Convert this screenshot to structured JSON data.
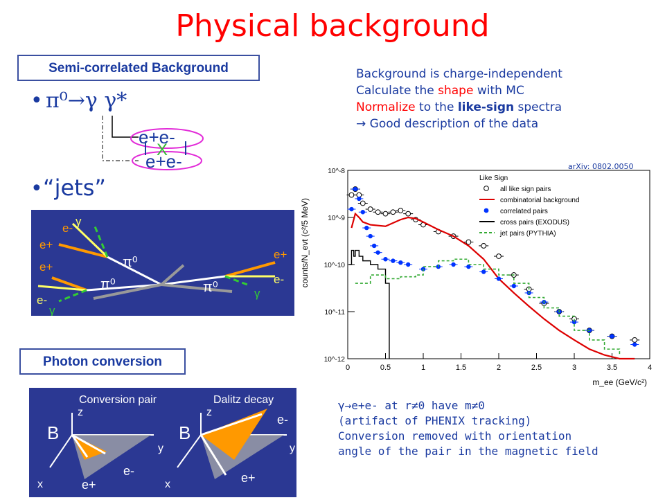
{
  "slide": {
    "title": "Physical background",
    "semi_box_label": "Semi-correlated Background",
    "photon_box_label": "Photon conversion",
    "bullet_glyph": "•",
    "pi_reaction": "π⁰→γ γ*",
    "ee_top": "e+e-",
    "ee_bottom": "e+e-",
    "cross_mark": "X",
    "jets_label": "“jets”",
    "description": [
      {
        "parts": [
          {
            "t": "Background is charge-independent",
            "c": ""
          }
        ]
      },
      {
        "parts": [
          {
            "t": "Calculate the ",
            "c": ""
          },
          {
            "t": "shape",
            "c": "red"
          },
          {
            "t": " with MC",
            "c": ""
          }
        ]
      },
      {
        "parts": [
          {
            "t": "Normalize",
            "c": "red"
          },
          {
            "t": " to the ",
            "c": ""
          },
          {
            "t": "like-sign",
            "c": "bold"
          },
          {
            "t": " spectra",
            "c": ""
          }
        ]
      },
      {
        "parts": [
          {
            "t": "→ Good description of the data",
            "c": ""
          }
        ]
      }
    ],
    "arxiv": "arXiv: 0802.0050",
    "conv_notes": [
      "γ→e+e- at r≠0 have m≠0",
      "(artifact of PHENIX tracking)",
      "Conversion removed with  orientation",
      "angle of the pair in the magnetic field"
    ]
  },
  "jets_diagram": {
    "labels": {
      "e_minus_top": "e-",
      "gamma_top": "γ",
      "e_plus_1": "e+",
      "e_plus_2": "e+",
      "pi0_a": "π⁰",
      "pi0_b": "π⁰",
      "pi0_c": "π⁰",
      "e_minus_left": "e-",
      "gamma_left": "γ",
      "e_plus_right": "e+",
      "e_minus_right": "e-",
      "gamma_right": "γ"
    }
  },
  "conversion_diagram": {
    "left_title": "Conversion pair",
    "right_title": "Dalitz decay",
    "B": "B",
    "z": "z",
    "y": "y",
    "x": "x",
    "e_minus": "e-",
    "e_plus": "e+"
  },
  "colors": {
    "title": "#ff0000",
    "text_blue": "#1a3aa0",
    "panel_bg": "#2b3893",
    "orange": "#ff9900",
    "yellow": "#ffff66",
    "green_dash": "#33cc33",
    "combinatorial": "#dd0000",
    "correlated": "#0033ff",
    "cross_pairs": "#000000",
    "jet_pairs": "#33aa33"
  },
  "chart_data": {
    "type": "line",
    "xlabel": "m_ee (GeV/c²)",
    "ylabel": "counts/N_evt (c²/5 MeV)",
    "xlim": [
      0,
      4
    ],
    "ylim": [
      1e-12,
      1e-08
    ],
    "log_y": true,
    "x_ticks": [
      "0",
      "0.5",
      "1",
      "1.5",
      "2",
      "2.5",
      "3",
      "3.5",
      "4"
    ],
    "y_ticks": [
      "10^-8",
      "10^-9",
      "10^-10",
      "10^-11",
      "10^-12"
    ],
    "legend_title": "Like Sign",
    "legend_position": "top-right",
    "series": [
      {
        "name": "all like sign pairs",
        "style": "open-circle",
        "x": [
          0.05,
          0.1,
          0.15,
          0.2,
          0.3,
          0.4,
          0.5,
          0.6,
          0.7,
          0.8,
          0.9,
          1.0,
          1.2,
          1.4,
          1.6,
          1.8,
          2.0,
          2.2,
          2.4,
          2.6,
          2.8,
          3.0,
          3.2,
          3.5,
          3.8
        ],
        "y": [
          3e-09,
          4e-09,
          3e-09,
          2e-09,
          1.5e-09,
          1.3e-09,
          1.2e-09,
          1.3e-09,
          1.4e-09,
          1.2e-09,
          9e-10,
          7e-10,
          5e-10,
          4e-10,
          3e-10,
          2.5e-10,
          1.5e-10,
          6e-11,
          3e-11,
          1.5e-11,
          1e-11,
          7e-12,
          4e-12,
          3e-12,
          2.5e-12
        ]
      },
      {
        "name": "combinatorial background",
        "style": "red-line",
        "x": [
          0.05,
          0.1,
          0.15,
          0.2,
          0.3,
          0.5,
          0.7,
          0.8,
          0.9,
          1.0,
          1.2,
          1.4,
          1.6,
          1.8,
          2.0,
          2.2,
          2.4,
          2.6,
          2.8,
          3.0,
          3.2,
          3.4,
          3.6,
          3.8
        ],
        "y": [
          6e-10,
          1.2e-09,
          1e-09,
          8e-10,
          7e-10,
          6.5e-10,
          9e-10,
          1e-09,
          9.5e-10,
          8e-10,
          5.5e-10,
          4e-10,
          2.5e-10,
          1.3e-10,
          5e-11,
          2.5e-11,
          1.3e-11,
          7e-12,
          4e-12,
          2.5e-12,
          1.6e-12,
          1.2e-12,
          1e-12,
          9e-13
        ]
      },
      {
        "name": "correlated pairs",
        "style": "blue-dot",
        "x": [
          0.05,
          0.1,
          0.15,
          0.2,
          0.25,
          0.3,
          0.35,
          0.4,
          0.5,
          0.6,
          0.7,
          0.8,
          1.0,
          1.2,
          1.4,
          1.6,
          1.8,
          2.0,
          2.2,
          2.4,
          2.6,
          2.8,
          3.0,
          3.2,
          3.5,
          3.8
        ],
        "y": [
          1.5e-09,
          4e-09,
          2.5e-09,
          1.3e-09,
          6e-10,
          4e-10,
          2.5e-10,
          1.8e-10,
          1.3e-10,
          1.2e-10,
          1.1e-10,
          1e-10,
          8e-11,
          9e-11,
          1e-10,
          9e-11,
          7e-11,
          5e-11,
          3.5e-11,
          2.5e-11,
          1.6e-11,
          1e-11,
          6e-12,
          4e-12,
          3e-12,
          2e-12
        ]
      },
      {
        "name": "cross pairs (EXODUS)",
        "style": "black-step",
        "x": [
          0.02,
          0.05,
          0.08,
          0.1,
          0.15,
          0.2,
          0.3,
          0.4,
          0.5,
          0.55
        ],
        "y": [
          1e-10,
          2e-10,
          1.5e-10,
          2e-10,
          1.5e-10,
          1.2e-10,
          1e-10,
          8e-11,
          4e-11,
          1e-12
        ]
      },
      {
        "name": "jet pairs (PYTHIA)",
        "style": "green-dash-step",
        "x": [
          0.1,
          0.3,
          0.5,
          0.7,
          0.9,
          1.0,
          1.2,
          1.4,
          1.6,
          1.8,
          2.0,
          2.2,
          2.4,
          2.6,
          2.8,
          3.0,
          3.2,
          3.4,
          3.6
        ],
        "y": [
          4e-11,
          6e-11,
          5e-11,
          5.5e-11,
          6e-11,
          9e-11,
          1.2e-10,
          1.3e-10,
          1e-10,
          8e-11,
          6e-11,
          4e-11,
          2e-11,
          1.2e-11,
          8e-12,
          4e-12,
          2.5e-12,
          1.6e-12,
          1.2e-12
        ]
      }
    ]
  }
}
